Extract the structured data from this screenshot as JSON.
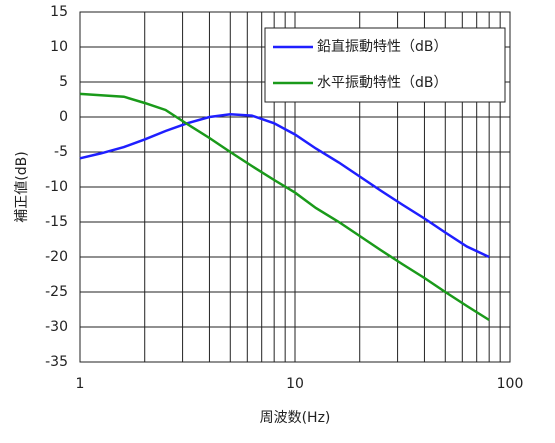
{
  "chart_data": {
    "type": "line",
    "x_label": "周波数(Hz)",
    "y_label": "補正値(dB)",
    "x": [
      1,
      1.25,
      1.6,
      2,
      2.5,
      3.15,
      4,
      5,
      6.3,
      8,
      10,
      12.5,
      16,
      20,
      25,
      31.5,
      40,
      50,
      63,
      80
    ],
    "series": [
      {
        "name": "鉛直振動特性（dB）",
        "color": "#1f1fff",
        "values": [
          -5.9,
          -5.2,
          -4.3,
          -3.2,
          -2.0,
          -0.9,
          0,
          0.4,
          0.2,
          -0.9,
          -2.5,
          -4.5,
          -6.5,
          -8.5,
          -10.5,
          -12.5,
          -14.5,
          -16.5,
          -18.5,
          -20
        ]
      },
      {
        "name": "水平振動特性（dB）",
        "color": "#1a9a1a",
        "values": [
          3.3,
          3.1,
          2.9,
          2,
          1,
          -1,
          -3,
          -5,
          -7,
          -9,
          -10.8,
          -13,
          -15,
          -17,
          -19,
          -21,
          -23,
          -25,
          -27,
          -29
        ]
      }
    ],
    "xlim": [
      1,
      100
    ],
    "xticks": [
      1,
      10,
      100
    ],
    "log_x": true,
    "minor_grid": true,
    "ylim": [
      -35,
      15
    ],
    "yticks": [
      -35,
      -30,
      -25,
      -20,
      -15,
      -10,
      -5,
      0,
      5,
      10,
      15
    ],
    "grid": true,
    "legend": "upper right"
  }
}
